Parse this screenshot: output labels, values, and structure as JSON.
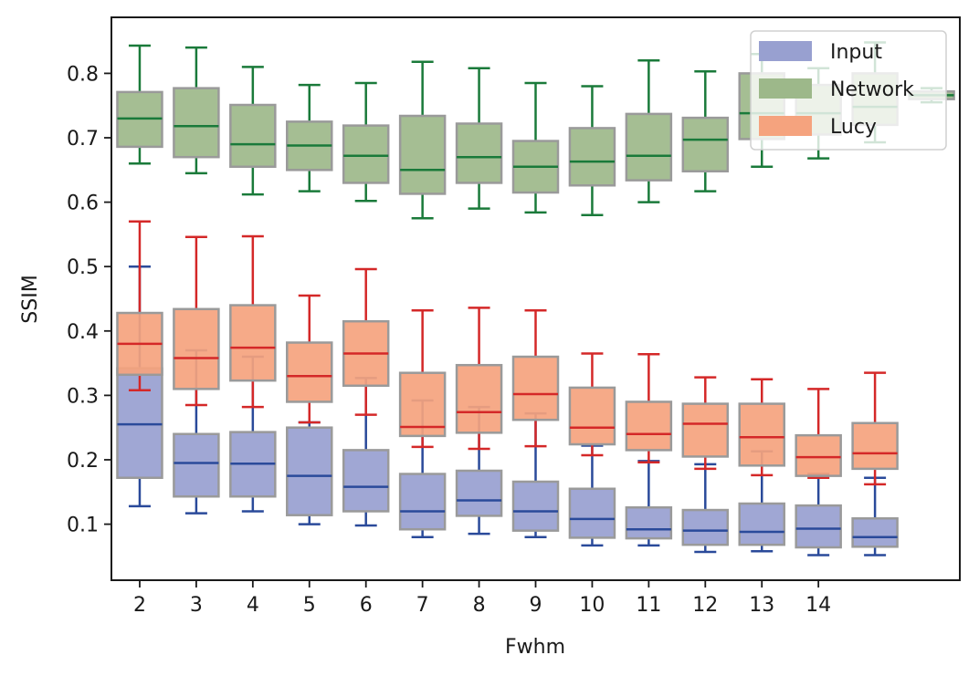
{
  "chart_data": {
    "type": "box",
    "xlabel": "Fwhm",
    "ylabel": "SSIM",
    "xlim": [
      1.5,
      16.5
    ],
    "ylim": [
      0.013,
      0.887
    ],
    "x_ticks": [
      2,
      3,
      4,
      5,
      6,
      7,
      8,
      9,
      10,
      11,
      12,
      13,
      14
    ],
    "y_ticks": [
      "0.1",
      "0.2",
      "0.3",
      "0.4",
      "0.5",
      "0.6",
      "0.7",
      "0.8"
    ],
    "y_tick_values": [
      0.1,
      0.2,
      0.3,
      0.4,
      0.5,
      0.6,
      0.7,
      0.8
    ],
    "legend": {
      "position": "top-right",
      "entries": [
        "Input",
        "Network",
        "Lucy"
      ]
    },
    "positions": [
      2,
      3,
      4,
      5,
      6,
      7,
      8,
      9,
      10,
      11,
      12,
      13,
      14,
      15,
      16
    ],
    "series": [
      {
        "name": "Input",
        "fill": "#98a0d0",
        "median_color": "#2a4a9a",
        "whisker_color": "#2a4a9a",
        "whisker_low": [
          0.128,
          0.117,
          0.12,
          0.1,
          0.098,
          0.08,
          0.085,
          0.08,
          0.067,
          0.067,
          0.057,
          0.058,
          0.052,
          0.052,
          null
        ],
        "q1": [
          0.172,
          0.143,
          0.143,
          0.114,
          0.12,
          0.092,
          0.113,
          0.09,
          0.079,
          0.078,
          0.068,
          0.068,
          0.064,
          0.065,
          null
        ],
        "median": [
          0.255,
          0.195,
          0.194,
          0.175,
          0.158,
          0.12,
          0.137,
          0.12,
          0.108,
          0.092,
          0.09,
          0.088,
          0.093,
          0.08,
          null
        ],
        "q3": [
          0.342,
          0.24,
          0.243,
          0.25,
          0.215,
          0.178,
          0.183,
          0.166,
          0.155,
          0.126,
          0.122,
          0.132,
          0.129,
          0.109,
          null
        ],
        "whisker_high": [
          0.5,
          0.37,
          0.36,
          0.258,
          0.327,
          0.292,
          0.282,
          0.272,
          0.222,
          0.198,
          0.193,
          0.213,
          0.178,
          0.172,
          null
        ]
      },
      {
        "name": "Network",
        "fill": "#9db88a",
        "median_color": "#1a7a3a",
        "whisker_color": "#1a7a3a",
        "whisker_low": [
          0.66,
          0.645,
          0.612,
          0.617,
          0.602,
          0.575,
          0.59,
          0.584,
          0.58,
          0.6,
          0.617,
          0.655,
          0.668,
          0.693,
          0.755
        ],
        "q1": [
          0.686,
          0.67,
          0.655,
          0.65,
          0.63,
          0.613,
          0.63,
          0.615,
          0.626,
          0.634,
          0.648,
          0.698,
          0.705,
          0.72,
          0.76
        ],
        "median": [
          0.73,
          0.718,
          0.69,
          0.688,
          0.672,
          0.65,
          0.67,
          0.655,
          0.663,
          0.672,
          0.697,
          0.738,
          0.738,
          0.748,
          0.766
        ],
        "q3": [
          0.771,
          0.777,
          0.751,
          0.725,
          0.719,
          0.734,
          0.722,
          0.695,
          0.715,
          0.737,
          0.731,
          0.8,
          0.782,
          0.8,
          0.772
        ],
        "whisker_high": [
          0.843,
          0.84,
          0.81,
          0.782,
          0.785,
          0.818,
          0.808,
          0.785,
          0.78,
          0.82,
          0.803,
          0.83,
          0.808,
          0.848,
          0.777
        ]
      },
      {
        "name": "Lucy",
        "fill": "#f5a37e",
        "median_color": "#d42828",
        "whisker_color": "#d42828",
        "whisker_low": [
          0.308,
          0.285,
          0.282,
          0.258,
          0.27,
          0.22,
          0.217,
          0.221,
          0.207,
          0.196,
          0.186,
          0.176,
          0.172,
          0.162,
          null
        ],
        "q1": [
          0.332,
          0.31,
          0.323,
          0.29,
          0.315,
          0.237,
          0.242,
          0.262,
          0.224,
          0.215,
          0.205,
          0.191,
          0.175,
          0.186,
          null
        ],
        "median": [
          0.38,
          0.358,
          0.374,
          0.33,
          0.365,
          0.251,
          0.274,
          0.302,
          0.25,
          0.24,
          0.256,
          0.235,
          0.204,
          0.21,
          null
        ],
        "q3": [
          0.428,
          0.434,
          0.44,
          0.382,
          0.415,
          0.335,
          0.347,
          0.36,
          0.312,
          0.29,
          0.287,
          0.287,
          0.238,
          0.257,
          null
        ],
        "whisker_high": [
          0.57,
          0.546,
          0.547,
          0.455,
          0.496,
          0.432,
          0.436,
          0.432,
          0.365,
          0.364,
          0.328,
          0.325,
          0.31,
          0.335,
          null
        ]
      }
    ]
  }
}
